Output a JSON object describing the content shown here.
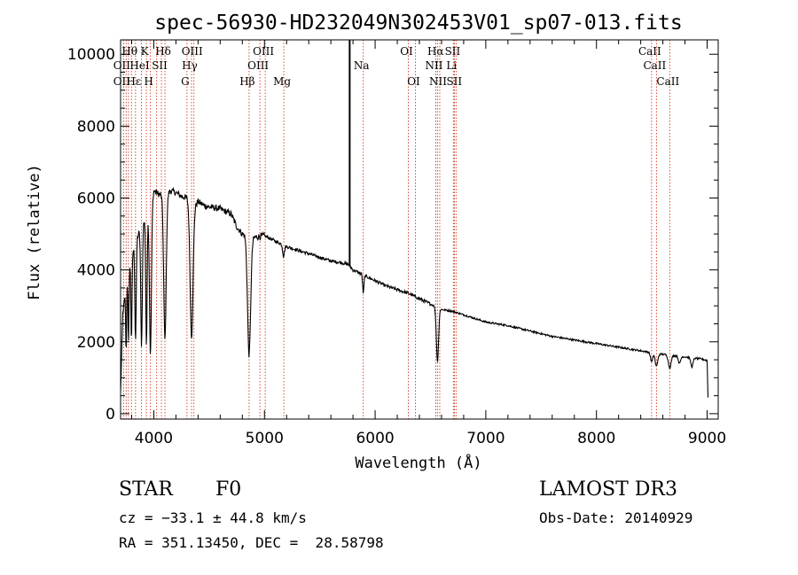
{
  "chart_data": {
    "type": "line",
    "title": "spec-56930-HD232049N302453V01_sp07-013.fits",
    "xlabel": "Wavelength (Å)",
    "ylabel": "Flux (relative)",
    "xlim": [
      3700,
      9100
    ],
    "ylim": [
      -150,
      10400
    ],
    "xticks": [
      4000,
      5000,
      6000,
      7000,
      8000,
      9000
    ],
    "xtick_labels": [
      "4000",
      "5000",
      "6000",
      "7000",
      "8000",
      "9000"
    ],
    "yticks": [
      0,
      2000,
      4000,
      6000,
      8000,
      10000
    ],
    "ytick_labels": [
      "0",
      "2000",
      "4000",
      "6000",
      "8000",
      "10000"
    ],
    "continuum": [
      [
        3700,
        600
      ],
      [
        3720,
        2800
      ],
      [
        3760,
        3700
      ],
      [
        3800,
        4400
      ],
      [
        3850,
        4900
      ],
      [
        3900,
        5300
      ],
      [
        3950,
        5600
      ],
      [
        4000,
        6200
      ],
      [
        4050,
        6100
      ],
      [
        4100,
        6050
      ],
      [
        4150,
        6200
      ],
      [
        4200,
        6150
      ],
      [
        4250,
        6050
      ],
      [
        4300,
        6000
      ],
      [
        4350,
        5700
      ],
      [
        4400,
        5900
      ],
      [
        4450,
        5800
      ],
      [
        4500,
        5750
      ],
      [
        4600,
        5700
      ],
      [
        4700,
        5550
      ],
      [
        4750,
        5200
      ],
      [
        4800,
        5000
      ],
      [
        4900,
        4900
      ],
      [
        5000,
        4950
      ],
      [
        5100,
        4800
      ],
      [
        5200,
        4650
      ],
      [
        5300,
        4550
      ],
      [
        5400,
        4450
      ],
      [
        5500,
        4350
      ],
      [
        5600,
        4250
      ],
      [
        5700,
        4200
      ],
      [
        5760,
        4150
      ],
      [
        5800,
        4000
      ],
      [
        5900,
        3850
      ],
      [
        6000,
        3700
      ],
      [
        6100,
        3550
      ],
      [
        6200,
        3450
      ],
      [
        6300,
        3350
      ],
      [
        6400,
        3200
      ],
      [
        6500,
        3050
      ],
      [
        6600,
        2900
      ],
      [
        6700,
        2850
      ],
      [
        6800,
        2750
      ],
      [
        6900,
        2650
      ],
      [
        7000,
        2550
      ],
      [
        7200,
        2450
      ],
      [
        7400,
        2300
      ],
      [
        7600,
        2150
      ],
      [
        7800,
        2050
      ],
      [
        8000,
        1950
      ],
      [
        8200,
        1850
      ],
      [
        8400,
        1750
      ],
      [
        8600,
        1650
      ],
      [
        8800,
        1580
      ],
      [
        8950,
        1520
      ],
      [
        9000,
        1480
      ],
      [
        9010,
        200
      ]
    ],
    "absorption_lines": [
      {
        "center": 3750,
        "depth": 1800,
        "width": 4
      },
      {
        "center": 3771,
        "depth": 2000,
        "width": 4
      },
      {
        "center": 3798,
        "depth": 2300,
        "width": 5
      },
      {
        "center": 3835,
        "depth": 2700,
        "width": 6
      },
      {
        "center": 3889,
        "depth": 3300,
        "width": 7
      },
      {
        "center": 3933,
        "depth": 3600,
        "width": 6
      },
      {
        "center": 3970,
        "depth": 4200,
        "width": 9
      },
      {
        "center": 4101,
        "depth": 4000,
        "width": 11
      },
      {
        "center": 4341,
        "depth": 3600,
        "width": 13
      },
      {
        "center": 4861,
        "depth": 3300,
        "width": 14
      },
      {
        "center": 5173,
        "depth": 300,
        "width": 8
      },
      {
        "center": 5893,
        "depth": 500,
        "width": 6
      },
      {
        "center": 6563,
        "depth": 1500,
        "width": 10
      },
      {
        "center": 8498,
        "depth": 250,
        "width": 10
      },
      {
        "center": 8542,
        "depth": 350,
        "width": 12
      },
      {
        "center": 8662,
        "depth": 350,
        "width": 12
      },
      {
        "center": 8750,
        "depth": 200,
        "width": 10
      },
      {
        "center": 8863,
        "depth": 250,
        "width": 10
      }
    ],
    "spikes": [
      {
        "x": 5770,
        "y": 10400
      }
    ],
    "line_markers": [
      3727,
      3750,
      3771,
      3798,
      3835,
      3889,
      3933,
      3970,
      4026,
      4069,
      4101,
      4300,
      4341,
      4363,
      4861,
      4959,
      5007,
      5175,
      5893,
      6300,
      6364,
      6548,
      6563,
      6584,
      6707,
      6716,
      6731,
      8498,
      8542,
      8662
    ],
    "annotations": [
      {
        "text": "Hθ",
        "x": 3798,
        "row": 1
      },
      {
        "text": "K",
        "x": 3933,
        "row": 1
      },
      {
        "text": "Hδ",
        "x": 4101,
        "row": 1
      },
      {
        "text": "OIII",
        "x": 4363,
        "row": 1
      },
      {
        "text": "OIII",
        "x": 5007,
        "row": 1
      },
      {
        "text": "OI",
        "x": 6300,
        "row": 1
      },
      {
        "text": "Hα",
        "x": 6563,
        "row": 1
      },
      {
        "text": "SII",
        "x": 6716,
        "row": 1
      },
      {
        "text": "CaII",
        "x": 8498,
        "row": 1
      },
      {
        "text": "OII",
        "x": 3727,
        "row": 2
      },
      {
        "text": "HeI",
        "x": 3889,
        "row": 2
      },
      {
        "text": "SII",
        "x": 4069,
        "row": 2
      },
      {
        "text": "Hγ",
        "x": 4341,
        "row": 2
      },
      {
        "text": "OIII",
        "x": 4959,
        "row": 2
      },
      {
        "text": "Na",
        "x": 5893,
        "row": 2
      },
      {
        "text": "NII",
        "x": 6548,
        "row": 2
      },
      {
        "text": "Li",
        "x": 6707,
        "row": 2
      },
      {
        "text": "CaII",
        "x": 8542,
        "row": 2
      },
      {
        "text": "OII",
        "x": 3727,
        "row": 3
      },
      {
        "text": "Hε",
        "x": 3835,
        "row": 3
      },
      {
        "text": "H",
        "x": 3970,
        "row": 3
      },
      {
        "text": "G",
        "x": 4300,
        "row": 3
      },
      {
        "text": "Hβ",
        "x": 4861,
        "row": 3
      },
      {
        "text": "Mg",
        "x": 5175,
        "row": 3
      },
      {
        "text": "OI",
        "x": 6364,
        "row": 3
      },
      {
        "text": "NII",
        "x": 6584,
        "row": 3
      },
      {
        "text": "SII",
        "x": 6731,
        "row": 3
      },
      {
        "text": "CaII",
        "x": 8662,
        "row": 3
      }
    ],
    "colors": {
      "spectrum": "#000000",
      "markers": "#cc2200",
      "axes": "#000000"
    }
  },
  "info": {
    "object_class": "STAR",
    "subclass": "F0",
    "cz_text": "cz = −33.1 ± 44.8 km/s",
    "coords_text": "RA = 351.13450, DEC =  28.58798",
    "survey": "LAMOST DR3",
    "obs_date": "Obs-Date: 20140929"
  }
}
